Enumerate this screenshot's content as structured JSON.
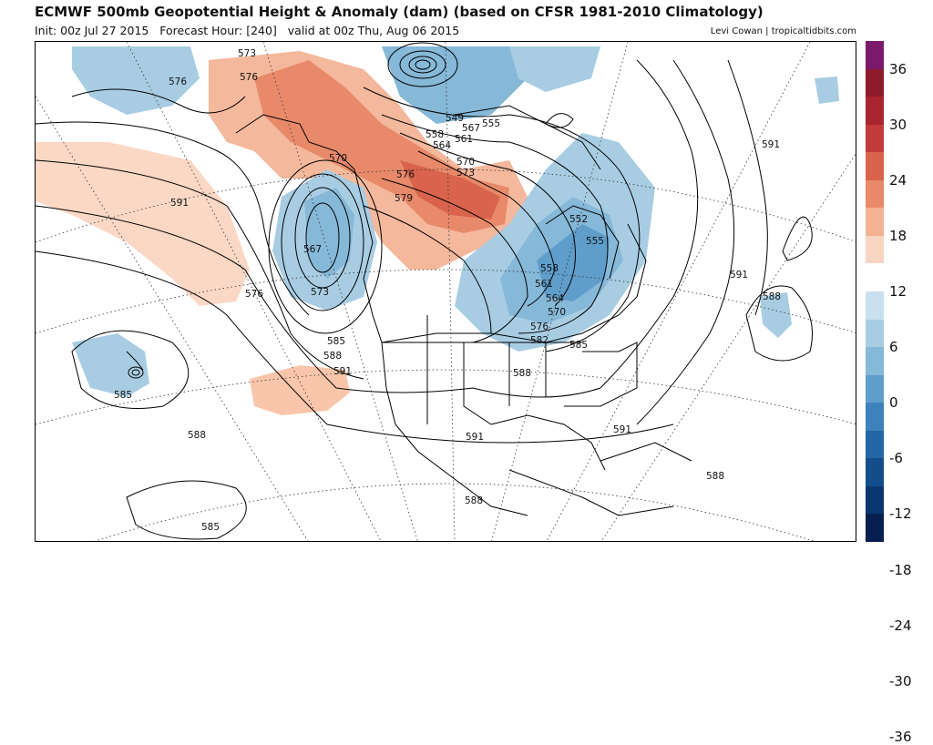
{
  "header": {
    "title": "ECMWF 500mb Geopotential Height & Anomaly (dam) (based on CFSR 1981-2010 Climatology)",
    "init": "Init: 00z Jul 27 2015",
    "forecast_hour": "Forecast Hour: [240]",
    "valid": "valid at 00z Thu, Aug 06 2015",
    "credit": "Levi Cowan | tropicaltidbits.com"
  },
  "colorbar": {
    "labels": [
      "36",
      "30",
      "24",
      "18",
      "12",
      "6",
      "0",
      "-6",
      "-12",
      "-18",
      "-24",
      "-30",
      "-36"
    ],
    "colors": [
      "#7b1a6b",
      "#8e1b2c",
      "#a8242f",
      "#c33a3a",
      "#d9634c",
      "#e88a6a",
      "#f2b293",
      "#f9d6c3",
      "#ffffff",
      "#c9e0ee",
      "#a8cde3",
      "#86b8d8",
      "#5f9ecb",
      "#3d82bb",
      "#2366a5",
      "#144d8c",
      "#0b3770",
      "#061f4f"
    ]
  },
  "contour_labels": [
    {
      "text": "573"
    },
    {
      "text": "576"
    },
    {
      "text": "576"
    },
    {
      "text": "570"
    },
    {
      "text": "591"
    },
    {
      "text": "567"
    },
    {
      "text": "573"
    },
    {
      "text": "576"
    },
    {
      "text": "579"
    },
    {
      "text": "549"
    },
    {
      "text": "555"
    },
    {
      "text": "558"
    },
    {
      "text": "561"
    },
    {
      "text": "564"
    },
    {
      "text": "567"
    },
    {
      "text": "570"
    },
    {
      "text": "573"
    },
    {
      "text": "552"
    },
    {
      "text": "555"
    },
    {
      "text": "558"
    },
    {
      "text": "561"
    },
    {
      "text": "564"
    },
    {
      "text": "570"
    },
    {
      "text": "576"
    },
    {
      "text": "582"
    },
    {
      "text": "585"
    },
    {
      "text": "585"
    },
    {
      "text": "588"
    },
    {
      "text": "591"
    },
    {
      "text": "588"
    },
    {
      "text": "591"
    },
    {
      "text": "591"
    },
    {
      "text": "588"
    },
    {
      "text": "585"
    },
    {
      "text": "588"
    },
    {
      "text": "591"
    },
    {
      "text": "591"
    },
    {
      "text": "588"
    },
    {
      "text": "588"
    },
    {
      "text": "585"
    },
    {
      "text": "576"
    }
  ]
}
